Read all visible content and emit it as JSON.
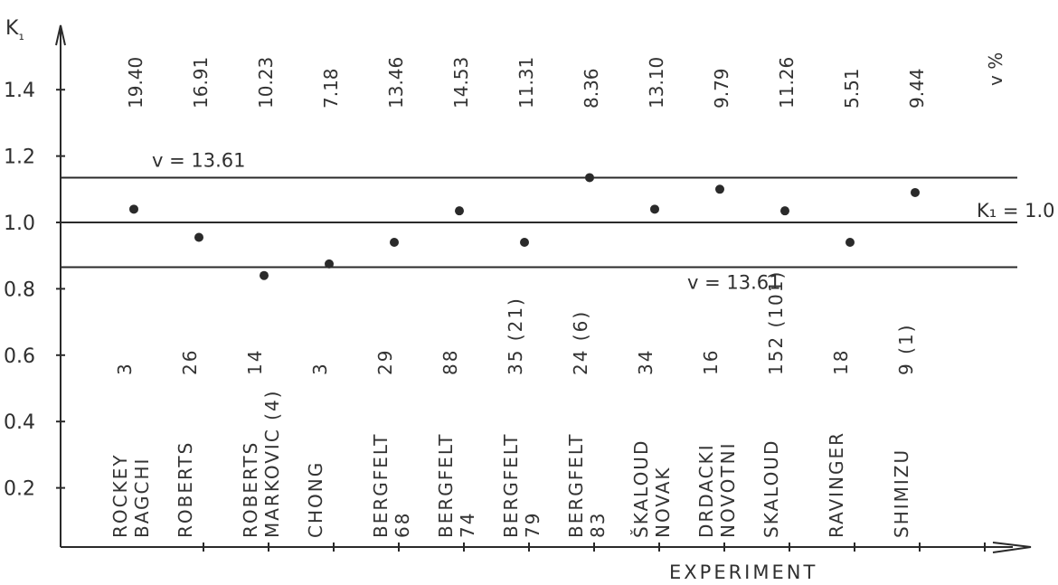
{
  "chart_data": {
    "type": "scatter",
    "title": "",
    "ylabel": "K₁",
    "xlabel": "EXPERIMENT",
    "ylim": [
      0.0,
      1.6
    ],
    "yticks": [
      "1.4",
      "1.2",
      "1.0",
      "0.8",
      "0.6",
      "0.4",
      "0.2"
    ],
    "ytick_values": [
      1.4,
      1.2,
      1.0,
      0.8,
      0.6,
      0.4,
      0.2
    ],
    "cv_header": "v %",
    "reference_lines": [
      {
        "value": 1.135,
        "label": "v = 13.61"
      },
      {
        "value": 1.0,
        "label": "K₁ = 1.0"
      },
      {
        "value": 0.865,
        "label": "v = 13.61"
      }
    ],
    "experiments": [
      {
        "cv": "19.40",
        "count": "3",
        "names": [
          "ROCKEY",
          "BAGCHI"
        ],
        "k1": 1.04
      },
      {
        "cv": "16.91",
        "count": "26",
        "names": [
          "ROBERTS"
        ],
        "k1": 0.955
      },
      {
        "cv": "10.23",
        "count": "14",
        "names": [
          "ROBERTS",
          "MARKOVIC (4)"
        ],
        "k1": 0.84
      },
      {
        "cv": "7.18",
        "count": "3",
        "names": [
          "CHONG"
        ],
        "k1": 0.875
      },
      {
        "cv": "13.46",
        "count": "29",
        "names": [
          "BERGFELT",
          "68"
        ],
        "k1": 0.94
      },
      {
        "cv": "14.53",
        "count": "88",
        "names": [
          "BERGFELT",
          "74"
        ],
        "k1": 1.035
      },
      {
        "cv": "11.31",
        "count": "35 (21)",
        "names": [
          "BERGFELT",
          "79"
        ],
        "k1": 0.94
      },
      {
        "cv": "8.36",
        "count": "24 (6)",
        "names": [
          "BERGFELT",
          "83"
        ],
        "k1": 1.135
      },
      {
        "cv": "13.10",
        "count": "34",
        "names": [
          "ŠKALOUD",
          "NOVAK"
        ],
        "k1": 1.04
      },
      {
        "cv": "9.79",
        "count": "16",
        "names": [
          "DRDACKI",
          "NOVOTNI"
        ],
        "k1": 1.1
      },
      {
        "cv": "11.26",
        "count": "152 (101)",
        "names": [
          "SKALOUD"
        ],
        "k1": 1.035
      },
      {
        "cv": "5.51",
        "count": "18",
        "names": [
          "RAVINGER"
        ],
        "k1": 0.94
      },
      {
        "cv": "9.44",
        "count": "9 (1)",
        "names": [
          "SHIMIZU"
        ],
        "k1": 1.09
      }
    ]
  }
}
